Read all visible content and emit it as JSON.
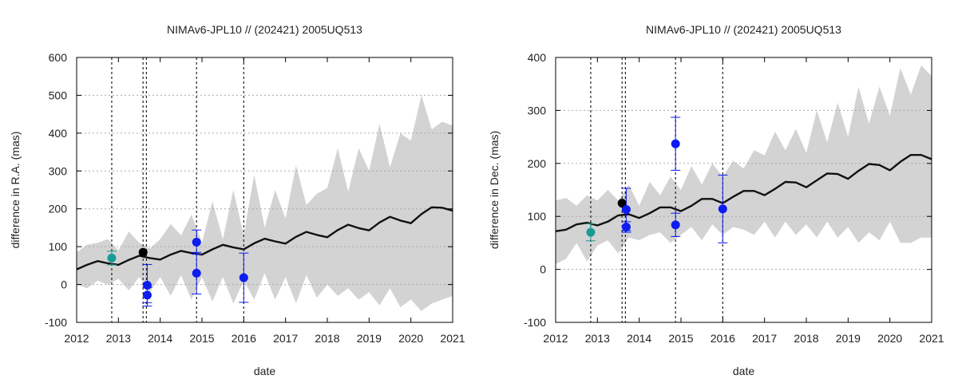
{
  "colors": {
    "band": "#d3d3d3",
    "curve": "#111111",
    "grid": "#aaaaaa",
    "vline": "#222222",
    "teal": "#189b96",
    "black": "#000000",
    "blue": "#0d1cf0",
    "axis": "#000000"
  },
  "chart_data": [
    {
      "type": "line",
      "title": "NIMAv6-JPL10 // (202421) 2005UQ513",
      "xlabel": "date",
      "ylabel": "difference in R.A. (mas)",
      "xlim": [
        2012,
        2021
      ],
      "ylim": [
        -100,
        600
      ],
      "xticks": [
        2012,
        2013,
        2014,
        2015,
        2016,
        2017,
        2018,
        2019,
        2020,
        2021
      ],
      "xtick_labels": [
        "2012",
        "2013",
        "2014",
        "2015",
        "2016",
        "2017",
        "2018",
        "2019",
        "2020",
        "2021"
      ],
      "yticks": [
        -100,
        0,
        100,
        200,
        300,
        400,
        500,
        600
      ],
      "ytick_labels": [
        "-100",
        "0",
        "100",
        "200",
        "300",
        "400",
        "500",
        "600"
      ],
      "grid": true,
      "vlines": [
        2012.84,
        2013.59,
        2013.67,
        2014.87,
        2016.0
      ],
      "curve": {
        "x": [
          2012.0,
          2012.25,
          2012.5,
          2012.75,
          2013.0,
          2013.25,
          2013.5,
          2013.75,
          2014.0,
          2014.25,
          2014.5,
          2014.75,
          2015.0,
          2015.25,
          2015.5,
          2015.75,
          2016.0,
          2016.25,
          2016.5,
          2016.75,
          2017.0,
          2017.25,
          2017.5,
          2017.75,
          2018.0,
          2018.25,
          2018.5,
          2018.75,
          2019.0,
          2019.25,
          2019.5,
          2019.75,
          2020.0,
          2020.25,
          2020.5,
          2020.75,
          2021.0
        ],
        "y": [
          40,
          52,
          62,
          56,
          52,
          65,
          76,
          70,
          66,
          79,
          89,
          83,
          79,
          93,
          105,
          98,
          93,
          109,
          121,
          114,
          108,
          126,
          139,
          131,
          125,
          144,
          158,
          149,
          143,
          164,
          179,
          169,
          162,
          186,
          204,
          203,
          195
        ]
      },
      "band_upper": [
        85,
        105,
        110,
        120,
        90,
        140,
        110,
        95,
        120,
        160,
        130,
        185,
        110,
        220,
        120,
        250,
        130,
        290,
        150,
        250,
        175,
        315,
        210,
        240,
        255,
        360,
        245,
        360,
        300,
        425,
        310,
        400,
        380,
        500,
        410,
        430,
        420
      ],
      "band_lower": [
        0,
        -10,
        10,
        0,
        15,
        -15,
        20,
        -20,
        20,
        -30,
        25,
        -40,
        20,
        -45,
        20,
        -50,
        10,
        -40,
        30,
        -40,
        20,
        -50,
        25,
        -35,
        0,
        -30,
        -10,
        -40,
        -20,
        -55,
        -10,
        -60,
        -40,
        -70,
        -50,
        -40,
        -30
      ],
      "points": [
        {
          "x": 2012.84,
          "y": 70,
          "err": 18,
          "color": "teal"
        },
        {
          "x": 2013.59,
          "y": 85,
          "err": 0,
          "color": "black"
        },
        {
          "x": 2013.69,
          "y": -2,
          "err": 55,
          "color": "blue"
        },
        {
          "x": 2013.69,
          "y": -28,
          "err": 20,
          "color": "blue"
        },
        {
          "x": 2014.87,
          "y": 112,
          "err": 32,
          "color": "blue"
        },
        {
          "x": 2014.87,
          "y": 30,
          "err": 55,
          "color": "blue"
        },
        {
          "x": 2016.0,
          "y": 18,
          "err": 65,
          "color": "blue"
        }
      ]
    },
    {
      "type": "line",
      "title": "NIMAv6-JPL10 // (202421) 2005UQ513",
      "xlabel": "date",
      "ylabel": "difference in Dec. (mas)",
      "xlim": [
        2012,
        2021
      ],
      "ylim": [
        -100,
        400
      ],
      "xticks": [
        2012,
        2013,
        2014,
        2015,
        2016,
        2017,
        2018,
        2019,
        2020,
        2021
      ],
      "xtick_labels": [
        "2012",
        "2013",
        "2014",
        "2015",
        "2016",
        "2017",
        "2018",
        "2019",
        "2020",
        "2021"
      ],
      "yticks": [
        -100,
        0,
        100,
        200,
        300,
        400
      ],
      "ytick_labels": [
        "-100",
        "0",
        "100",
        "200",
        "300",
        "400"
      ],
      "grid": true,
      "vlines": [
        2012.84,
        2013.59,
        2013.67,
        2014.87,
        2016.0
      ],
      "curve": {
        "x": [
          2012.0,
          2012.25,
          2012.5,
          2012.75,
          2013.0,
          2013.25,
          2013.5,
          2013.75,
          2014.0,
          2014.25,
          2014.5,
          2014.75,
          2015.0,
          2015.25,
          2015.5,
          2015.75,
          2016.0,
          2016.25,
          2016.5,
          2016.75,
          2017.0,
          2017.25,
          2017.5,
          2017.75,
          2018.0,
          2018.25,
          2018.5,
          2018.75,
          2019.0,
          2019.25,
          2019.5,
          2019.75,
          2020.0,
          2020.25,
          2020.5,
          2020.75,
          2021.0
        ],
        "y": [
          72,
          75,
          85,
          88,
          83,
          90,
          102,
          104,
          97,
          106,
          117,
          117,
          110,
          120,
          133,
          133,
          125,
          137,
          148,
          148,
          140,
          152,
          165,
          164,
          155,
          168,
          181,
          180,
          171,
          186,
          199,
          197,
          187,
          203,
          216,
          216,
          208
        ]
      },
      "band_upper": [
        130,
        135,
        120,
        140,
        130,
        150,
        130,
        160,
        120,
        165,
        140,
        175,
        150,
        195,
        160,
        200,
        175,
        205,
        190,
        225,
        215,
        260,
        225,
        265,
        220,
        300,
        240,
        315,
        250,
        345,
        275,
        345,
        290,
        380,
        330,
        385,
        365
      ],
      "band_lower": [
        10,
        20,
        50,
        15,
        45,
        55,
        30,
        60,
        55,
        65,
        70,
        50,
        65,
        80,
        55,
        85,
        65,
        80,
        75,
        65,
        90,
        60,
        90,
        65,
        85,
        60,
        90,
        60,
        80,
        50,
        70,
        55,
        90,
        50,
        50,
        60,
        60
      ],
      "points": [
        {
          "x": 2012.84,
          "y": 70,
          "err": 16,
          "color": "teal"
        },
        {
          "x": 2013.59,
          "y": 125,
          "err": 0,
          "color": "black"
        },
        {
          "x": 2013.69,
          "y": 113,
          "err": 40,
          "color": "blue"
        },
        {
          "x": 2013.69,
          "y": 80,
          "err": 10,
          "color": "blue"
        },
        {
          "x": 2014.87,
          "y": 237,
          "err": 50,
          "color": "blue"
        },
        {
          "x": 2014.87,
          "y": 84,
          "err": 22,
          "color": "blue"
        },
        {
          "x": 2016.0,
          "y": 114,
          "err": 64,
          "color": "blue"
        }
      ]
    }
  ]
}
